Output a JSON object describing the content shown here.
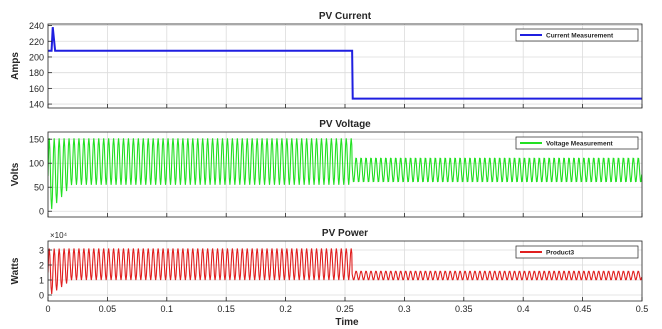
{
  "figure": {
    "shared_xlabel": "Time"
  },
  "chart_data": [
    {
      "type": "line",
      "title": "PV Current",
      "xlabel": "",
      "ylabel": "Amps",
      "xlim": [
        0,
        0.5
      ],
      "ylim": [
        135,
        242
      ],
      "xticks": [
        0,
        0.05,
        0.1,
        0.15,
        0.2,
        0.25,
        0.3,
        0.35,
        0.4,
        0.45,
        0.5
      ],
      "yticks": [
        140,
        160,
        180,
        200,
        220,
        240
      ],
      "ytick_labels": [
        "140",
        "160",
        "180",
        "200",
        "220",
        "240"
      ],
      "exponent_label": "",
      "grid": true,
      "legend_position": "top-right",
      "series": [
        {
          "name": "Current Measurement",
          "color": "#1f1fe0",
          "shape": "step",
          "x": [
            0,
            0.003,
            0.004,
            0.006,
            0.0065,
            0.256,
            0.2565,
            0.5
          ],
          "y": [
            208,
            208,
            238,
            208,
            208,
            208,
            147,
            147
          ]
        }
      ]
    },
    {
      "type": "line",
      "title": "PV Voltage",
      "xlabel": "",
      "ylabel": "Volts",
      "xlim": [
        0,
        0.5
      ],
      "ylim": [
        -12,
        165
      ],
      "xticks": [
        0,
        0.05,
        0.1,
        0.15,
        0.2,
        0.25,
        0.3,
        0.35,
        0.4,
        0.45,
        0.5
      ],
      "yticks": [
        0,
        50,
        100,
        150
      ],
      "ytick_labels": [
        "0",
        "50",
        "100",
        "150"
      ],
      "exponent_label": "",
      "grid": true,
      "legend_position": "top-right",
      "series": [
        {
          "name": "Voltage Measurement",
          "color": "#22e022",
          "shape": "oscillation",
          "frequency_hz": 240,
          "segments": [
            {
              "x_start": 0,
              "x_end": 0.256,
              "max": 152,
              "min": 55,
              "min_start": -5
            },
            {
              "x_start": 0.256,
              "x_end": 0.5,
              "max": 112,
              "min": 60
            }
          ]
        }
      ]
    },
    {
      "type": "line",
      "title": "PV Power",
      "xlabel": "Time",
      "ylabel": "Watts",
      "xlim": [
        0,
        0.5
      ],
      "ylim": [
        -0.4,
        3.6
      ],
      "xticks": [
        0,
        0.05,
        0.1,
        0.15,
        0.2,
        0.25,
        0.3,
        0.35,
        0.4,
        0.45,
        0.5
      ],
      "xtick_labels": [
        "0",
        "0.05",
        "0.1",
        "0.15",
        "0.2",
        "0.25",
        "0.3",
        "0.35",
        "0.4",
        "0.45",
        "0.5"
      ],
      "yticks": [
        0,
        1,
        2,
        3
      ],
      "ytick_labels": [
        "0",
        "1",
        "2",
        "3"
      ],
      "exponent_label": "×10⁴",
      "grid": true,
      "legend_position": "top-right",
      "series": [
        {
          "name": "Product3",
          "color": "#e01f1f",
          "shape": "oscillation",
          "frequency_hz": 240,
          "unit_scale": 10000,
          "segments": [
            {
              "x_start": 0,
              "x_end": 0.256,
              "max": 3.1,
              "min": 1.0,
              "min_start": -0.1
            },
            {
              "x_start": 0.256,
              "x_end": 0.5,
              "max": 1.6,
              "min": 1.0
            }
          ]
        }
      ]
    }
  ]
}
